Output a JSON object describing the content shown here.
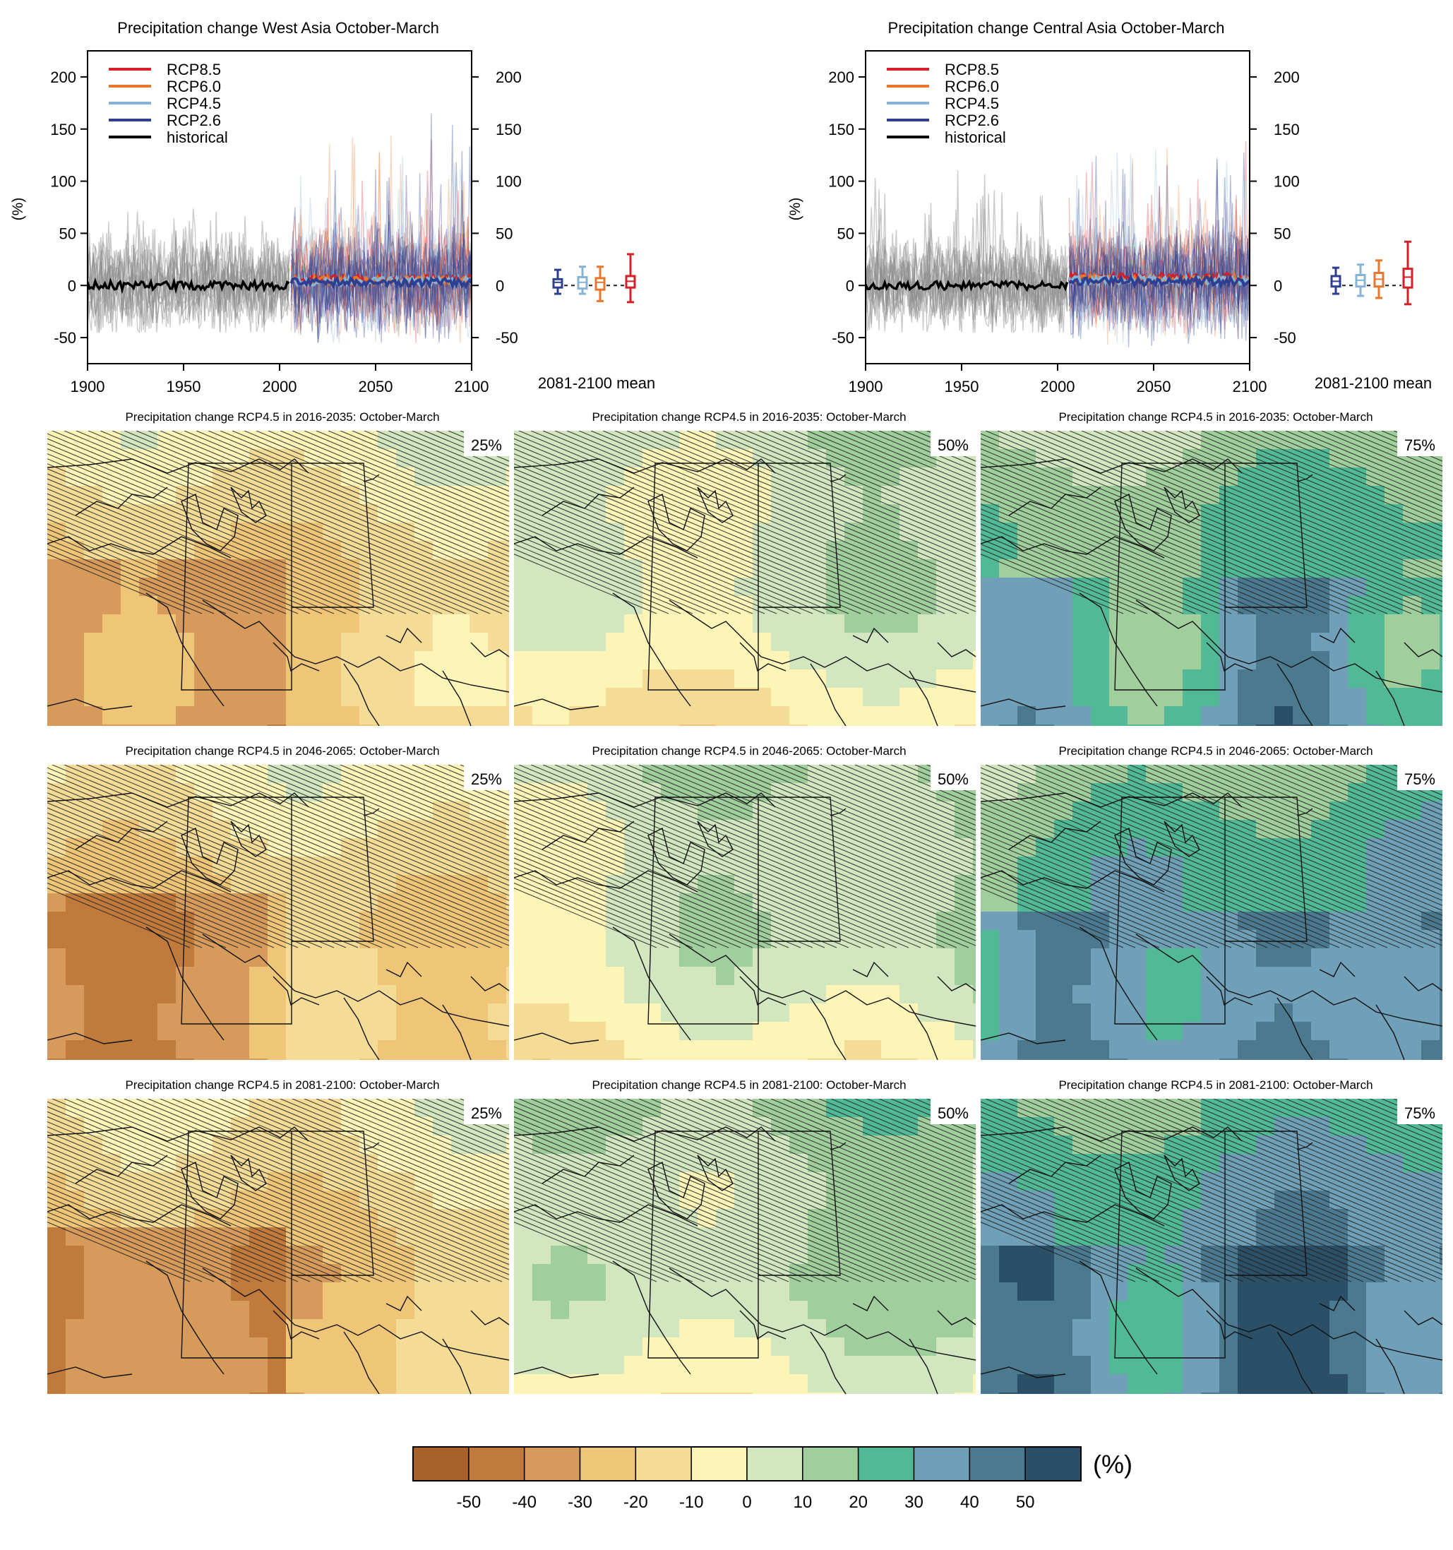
{
  "colors": {
    "RCP8.5": "#d62028",
    "RCP6.0": "#e8772e",
    "RCP4.5": "#86b4d6",
    "RCP2.6": "#2e3f92",
    "historical": "#000000",
    "ensemble_grey": "#8c8c8c"
  },
  "chart_data": [
    {
      "type": "line",
      "title": "Precipitation change West Asia October-March",
      "ylabel": "(%)",
      "xlim": [
        1900,
        2100
      ],
      "ylim": [
        -75,
        225
      ],
      "xticks": [
        1900,
        1950,
        2000,
        2050,
        2100
      ],
      "yticks": [
        -50,
        0,
        50,
        100,
        150,
        200
      ],
      "legend_position": "top-left",
      "legend": [
        "RCP8.5",
        "RCP6.0",
        "RCP4.5",
        "RCP2.6",
        "historical"
      ],
      "historical_period": [
        1900,
        2005
      ],
      "scenario_period": [
        2006,
        2100
      ],
      "series_mean_level": {
        "historical": 0,
        "RCP2.6": 3,
        "RCP4.5": 4,
        "RCP6.0": 5,
        "RCP8.5": 6
      },
      "ensemble_spread": {
        "historical": [
          -45,
          90
        ],
        "scenarios": [
          -55,
          165
        ]
      },
      "box_label": "2081-2100 mean",
      "boxes": [
        {
          "name": "RCP2.6",
          "whisker": [
            -8,
            15
          ],
          "box": [
            -2,
            6
          ],
          "median": 3
        },
        {
          "name": "RCP4.5",
          "whisker": [
            -8,
            18
          ],
          "box": [
            -3,
            8
          ],
          "median": 3
        },
        {
          "name": "RCP6.0",
          "whisker": [
            -15,
            18
          ],
          "box": [
            -4,
            7
          ],
          "median": 3
        },
        {
          "name": "RCP8.5",
          "whisker": [
            -16,
            30
          ],
          "box": [
            -2,
            9
          ],
          "median": 4
        }
      ]
    },
    {
      "type": "line",
      "title": "Precipitation change Central Asia October-March",
      "ylabel": "(%)",
      "xlim": [
        1900,
        2100
      ],
      "ylim": [
        -75,
        225
      ],
      "xticks": [
        1900,
        1950,
        2000,
        2050,
        2100
      ],
      "yticks": [
        -50,
        0,
        50,
        100,
        150,
        200
      ],
      "legend_position": "top-left",
      "legend": [
        "RCP8.5",
        "RCP6.0",
        "RCP4.5",
        "RCP2.6",
        "historical"
      ],
      "historical_period": [
        1900,
        2005
      ],
      "scenario_period": [
        2006,
        2100
      ],
      "series_mean_level": {
        "historical": 0,
        "RCP2.6": 4,
        "RCP4.5": 5,
        "RCP6.0": 6,
        "RCP8.5": 8
      },
      "ensemble_spread": {
        "historical": [
          -45,
          110
        ],
        "scenarios": [
          -60,
          145
        ]
      },
      "box_label": "2081-2100 mean",
      "boxes": [
        {
          "name": "RCP2.6",
          "whisker": [
            -8,
            17
          ],
          "box": [
            -1,
            9
          ],
          "median": 4
        },
        {
          "name": "RCP4.5",
          "whisker": [
            -10,
            20
          ],
          "box": [
            -1,
            10
          ],
          "median": 5
        },
        {
          "name": "RCP6.0",
          "whisker": [
            -12,
            24
          ],
          "box": [
            -1,
            12
          ],
          "median": 6
        },
        {
          "name": "RCP8.5",
          "whisker": [
            -18,
            42
          ],
          "box": [
            -2,
            16
          ],
          "median": 8
        }
      ]
    },
    {
      "type": "heatmap",
      "panels": [
        {
          "title": "Precipitation change RCP4.5 in 2016-2035: October-March",
          "percentile": "25%"
        },
        {
          "title": "Precipitation change RCP4.5 in 2016-2035: October-March",
          "percentile": "50%"
        },
        {
          "title": "Precipitation change RCP4.5 in 2016-2035: October-March",
          "percentile": "75%"
        },
        {
          "title": "Precipitation change RCP4.5 in 2046-2065: October-March",
          "percentile": "25%"
        },
        {
          "title": "Precipitation change RCP4.5 in 2046-2065: October-March",
          "percentile": "50%"
        },
        {
          "title": "Precipitation change RCP4.5 in 2046-2065: October-March",
          "percentile": "75%"
        },
        {
          "title": "Precipitation change RCP4.5 in 2081-2100: October-March",
          "percentile": "25%"
        },
        {
          "title": "Precipitation change RCP4.5 in 2081-2100: October-March",
          "percentile": "50%"
        },
        {
          "title": "Precipitation change RCP4.5 in 2081-2100: October-March",
          "percentile": "75%"
        }
      ],
      "colorbar": {
        "unit": "(%)",
        "tick_labels": [
          "-50",
          "-40",
          "-30",
          "-20",
          "-10",
          "0",
          "10",
          "20",
          "30",
          "40",
          "50"
        ],
        "colors": [
          "#a8612b",
          "#c07a3c",
          "#d69a5b",
          "#efc578",
          "#f4dc97",
          "#fdf5b8",
          "#d2e6c0",
          "#a0ce9c",
          "#52b996",
          "#6fa0b8",
          "#4b7a90",
          "#2a4f66"
        ]
      }
    }
  ]
}
